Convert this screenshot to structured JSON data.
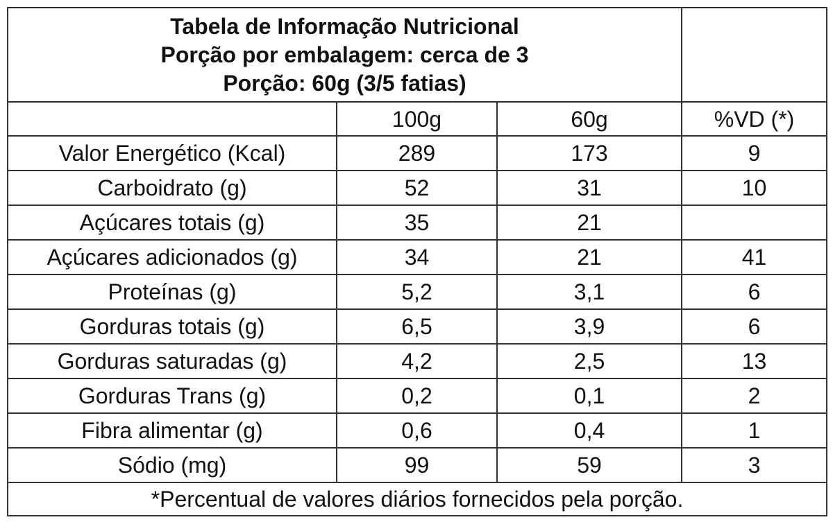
{
  "title": {
    "line1": "Tabela de Informação Nutricional",
    "line2": "Porção por embalagem: cerca de 3",
    "line3": "Porção: 60g (3/5 fatias)"
  },
  "columns": [
    "",
    "100g",
    "60g",
    "%VD (*)"
  ],
  "rows": [
    {
      "name": "Valor Energético (Kcal)",
      "per100g": "289",
      "per60g": "173",
      "vd": "9"
    },
    {
      "name": "Carboidrato (g)",
      "per100g": "52",
      "per60g": "31",
      "vd": "10"
    },
    {
      "name": "Açúcares totais (g)",
      "per100g": "35",
      "per60g": "21",
      "vd": ""
    },
    {
      "name": "Açúcares adicionados (g)",
      "per100g": "34",
      "per60g": "21",
      "vd": "41"
    },
    {
      "name": "Proteínas (g)",
      "per100g": "5,2",
      "per60g": "3,1",
      "vd": "6"
    },
    {
      "name": "Gorduras totais (g)",
      "per100g": "6,5",
      "per60g": "3,9",
      "vd": "6"
    },
    {
      "name": "Gorduras saturadas (g)",
      "per100g": "4,2",
      "per60g": "2,5",
      "vd": "13"
    },
    {
      "name": "Gorduras Trans (g)",
      "per100g": "0,2",
      "per60g": "0,1",
      "vd": "2"
    },
    {
      "name": "Fibra alimentar (g)",
      "per100g": "0,6",
      "per60g": "0,4",
      "vd": "1"
    },
    {
      "name": "Sódio (mg)",
      "per100g": "99",
      "per60g": "59",
      "vd": "3"
    }
  ],
  "footnote": "*Percentual de valores diários fornecidos pela porção."
}
